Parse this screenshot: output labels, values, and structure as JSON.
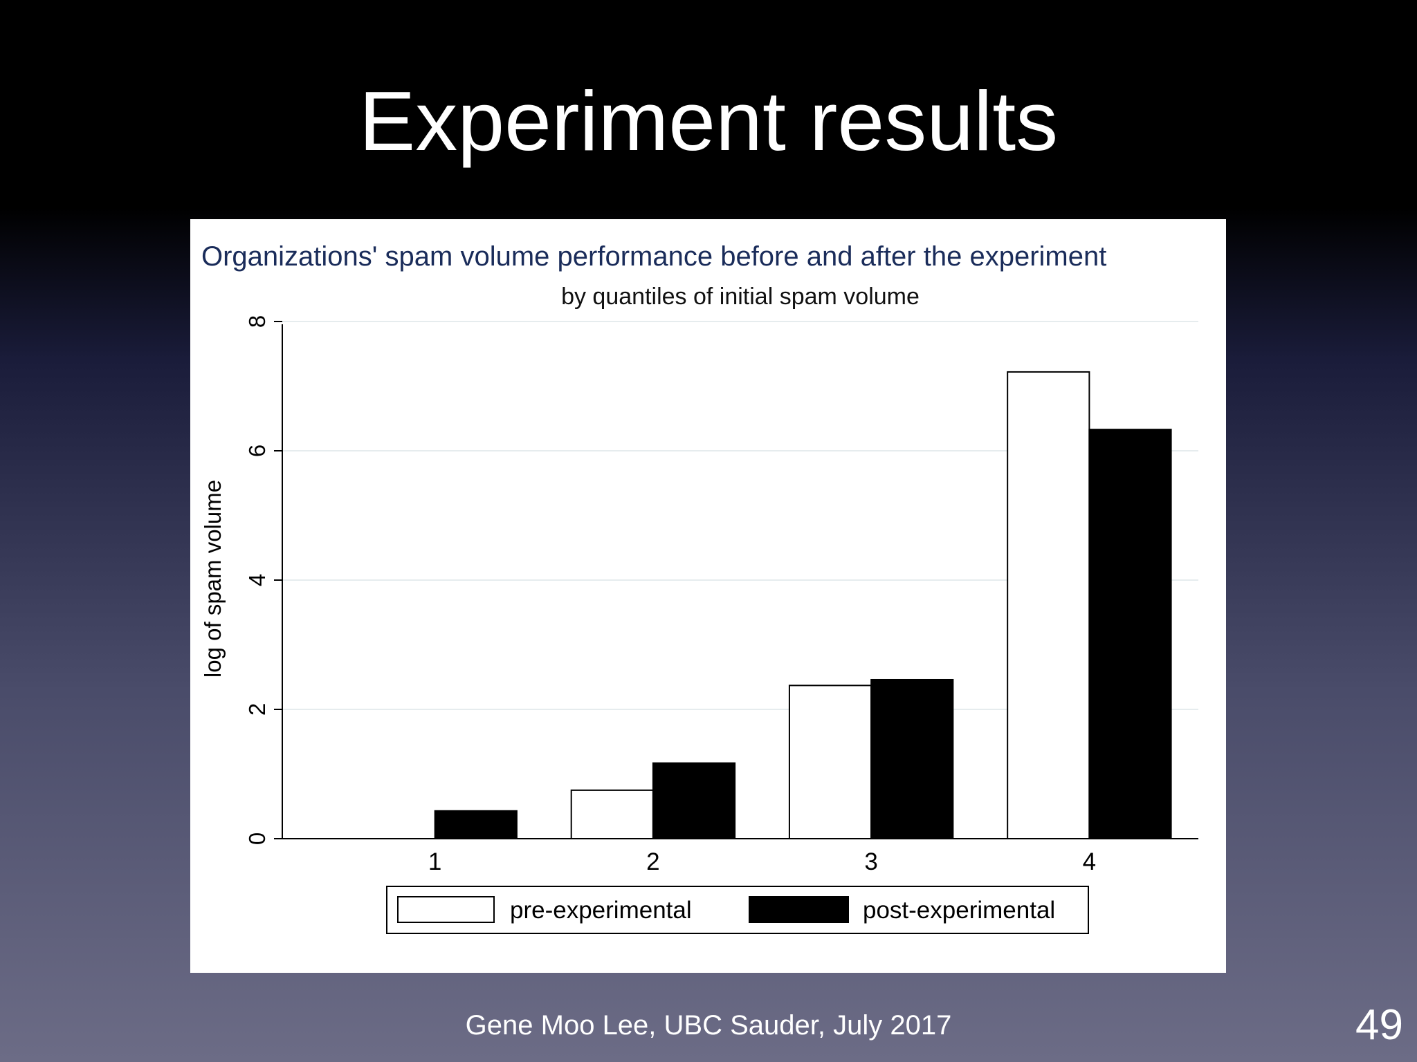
{
  "slide": {
    "title": "Experiment results",
    "footer": "Gene Moo Lee, UBC Sauder, July 2017",
    "page_number": "49"
  },
  "colors": {
    "pre_bar_fill": "#ffffff",
    "post_bar_fill": "#000000",
    "title_color": "#1a2c5a"
  },
  "chart_data": {
    "type": "bar",
    "title": "Organizations' spam volume performance before and after the experiment",
    "subtitle": "by quantiles of initial spam volume",
    "xlabel": "",
    "ylabel": "log of spam volume",
    "categories": [
      "1",
      "2",
      "3",
      "4"
    ],
    "series": [
      {
        "name": "pre-experimental",
        "values": [
          0,
          0.75,
          2.37,
          7.22
        ]
      },
      {
        "name": "post-experimental",
        "values": [
          0.43,
          1.17,
          2.46,
          6.33
        ]
      }
    ],
    "yticks": [
      "0",
      "2",
      "4",
      "6",
      "8"
    ],
    "ylim": [
      0,
      8
    ],
    "grid": true,
    "legend_position": "bottom"
  }
}
